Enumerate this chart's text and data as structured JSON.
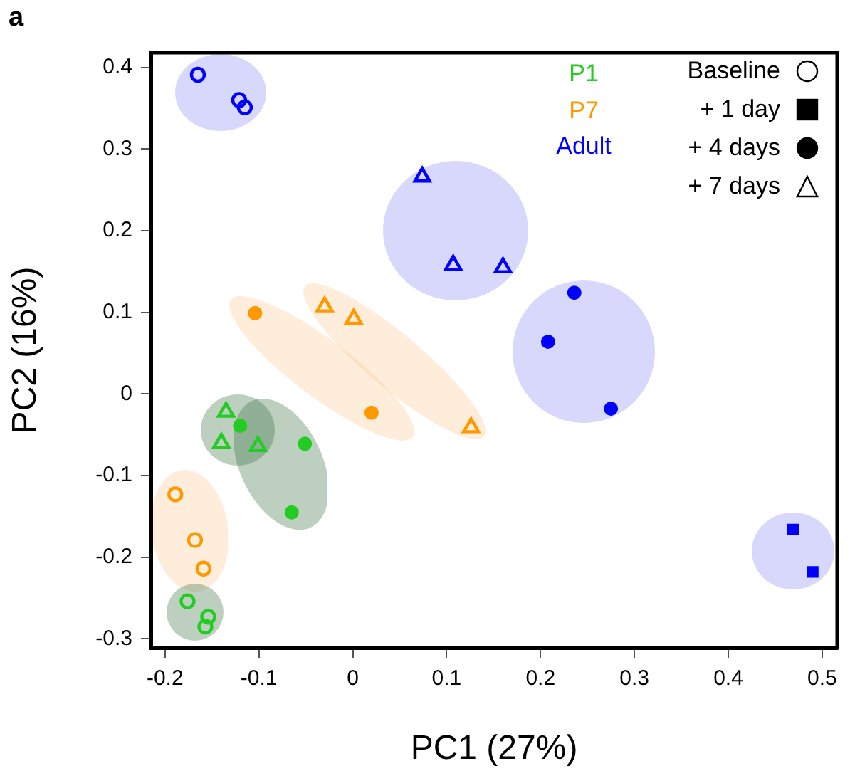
{
  "chart_data": {
    "type": "scatter",
    "title": "a",
    "xlabel": "PC1 (27%)",
    "ylabel": "PC2 (16%)",
    "xlim": [
      -0.215,
      0.516
    ],
    "ylim": [
      -0.311,
      0.418
    ],
    "xticks": [
      -0.2,
      -0.1,
      0,
      0.1,
      0.2,
      0.3,
      0.4,
      0.5
    ],
    "yticks": [
      -0.3,
      -0.2,
      -0.1,
      0,
      0.1,
      0.2,
      0.3,
      0.4
    ],
    "grid": false,
    "annotations": [
      "P1",
      "P7",
      "Adult",
      "Baseline",
      "+ 1 day",
      "+ 4 days",
      "+ 7 days"
    ],
    "series": [
      {
        "color": "#22cc22",
        "marker": "circle-open",
        "x": [
          -0.176,
          -0.154,
          -0.157
        ],
        "values": [
          -0.254,
          -0.273,
          -0.285
        ]
      },
      {
        "color": "#ff9900",
        "marker": "circle-open",
        "x": [
          -0.189,
          -0.168,
          -0.159
        ],
        "values": [
          -0.123,
          -0.179,
          -0.214
        ]
      },
      {
        "color": "#0000ff",
        "marker": "circle-open",
        "x": [
          -0.165,
          -0.121,
          -0.115
        ],
        "values": [
          0.391,
          0.36,
          0.351
        ]
      },
      {
        "color": "#0000ff",
        "marker": "square",
        "x": [
          0.469,
          0.49
        ],
        "values": [
          -0.166,
          -0.218
        ]
      },
      {
        "color": "#22cc22",
        "marker": "circle",
        "x": [
          -0.12,
          -0.051,
          -0.065
        ],
        "values": [
          -0.039,
          -0.061,
          -0.145
        ]
      },
      {
        "color": "#ff9900",
        "marker": "circle",
        "x": [
          -0.104,
          0.02
        ],
        "values": [
          0.099,
          -0.023
        ]
      },
      {
        "color": "#0000ff",
        "marker": "circle",
        "x": [
          0.236,
          0.208,
          0.275
        ],
        "values": [
          0.124,
          0.064,
          -0.018
        ]
      },
      {
        "color": "#22cc22",
        "marker": "triangle-open",
        "x": [
          -0.135,
          -0.14,
          -0.101
        ],
        "values": [
          -0.022,
          -0.06,
          -0.064
        ]
      },
      {
        "color": "#ff9900",
        "marker": "triangle-open",
        "x": [
          -0.03,
          0.001,
          0.126
        ],
        "values": [
          0.107,
          0.092,
          -0.041
        ]
      },
      {
        "color": "#0000ff",
        "marker": "triangle-open",
        "x": [
          0.074,
          0.107,
          0.16
        ],
        "values": [
          0.266,
          0.158,
          0.155
        ]
      }
    ]
  }
}
